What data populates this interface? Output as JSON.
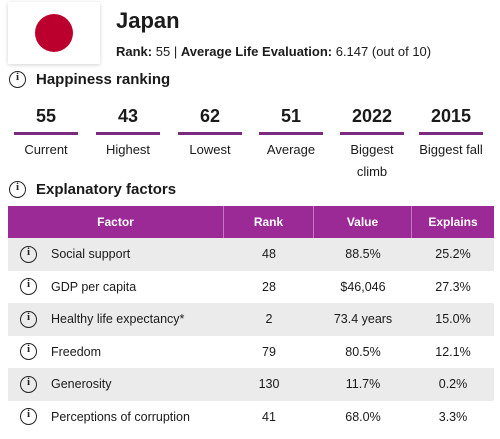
{
  "header": {
    "country": "Japan",
    "rank_label": "Rank:",
    "rank_value": "55",
    "separator": "|",
    "ale_label": "Average Life Evaluation:",
    "ale_value": "6.147 (out of 10)"
  },
  "colors": {
    "accent": "#9b2a97",
    "bar": "#7b2a7e",
    "flag_red": "#bc002d",
    "row_alt": "#ecebec"
  },
  "ranking": {
    "title": "Happiness ranking",
    "icon": "info-icon",
    "stats": [
      {
        "value": "55",
        "label": "Current"
      },
      {
        "value": "43",
        "label": "Highest"
      },
      {
        "value": "62",
        "label": "Lowest"
      },
      {
        "value": "51",
        "label": "Average"
      },
      {
        "value": "2022",
        "label": "Biggest climb"
      },
      {
        "value": "2015",
        "label": "Biggest fall"
      }
    ]
  },
  "factors": {
    "title": "Explanatory factors",
    "columns": [
      "Factor",
      "Rank",
      "Value",
      "Explains"
    ],
    "rows": [
      {
        "factor": "Social support",
        "rank": "48",
        "value": "88.5%",
        "explains": "25.2%"
      },
      {
        "factor": "GDP per capita",
        "rank": "28",
        "value": "$46,046",
        "explains": "27.3%"
      },
      {
        "factor": "Healthy life expectancy*",
        "rank": "2",
        "value": "73.4 years",
        "explains": "15.0%"
      },
      {
        "factor": "Freedom",
        "rank": "79",
        "value": "80.5%",
        "explains": "12.1%"
      },
      {
        "factor": "Generosity",
        "rank": "130",
        "value": "11.7%",
        "explains": "0.2%"
      },
      {
        "factor": "Perceptions of corruption",
        "rank": "41",
        "value": "68.0%",
        "explains": "3.3%"
      }
    ]
  }
}
